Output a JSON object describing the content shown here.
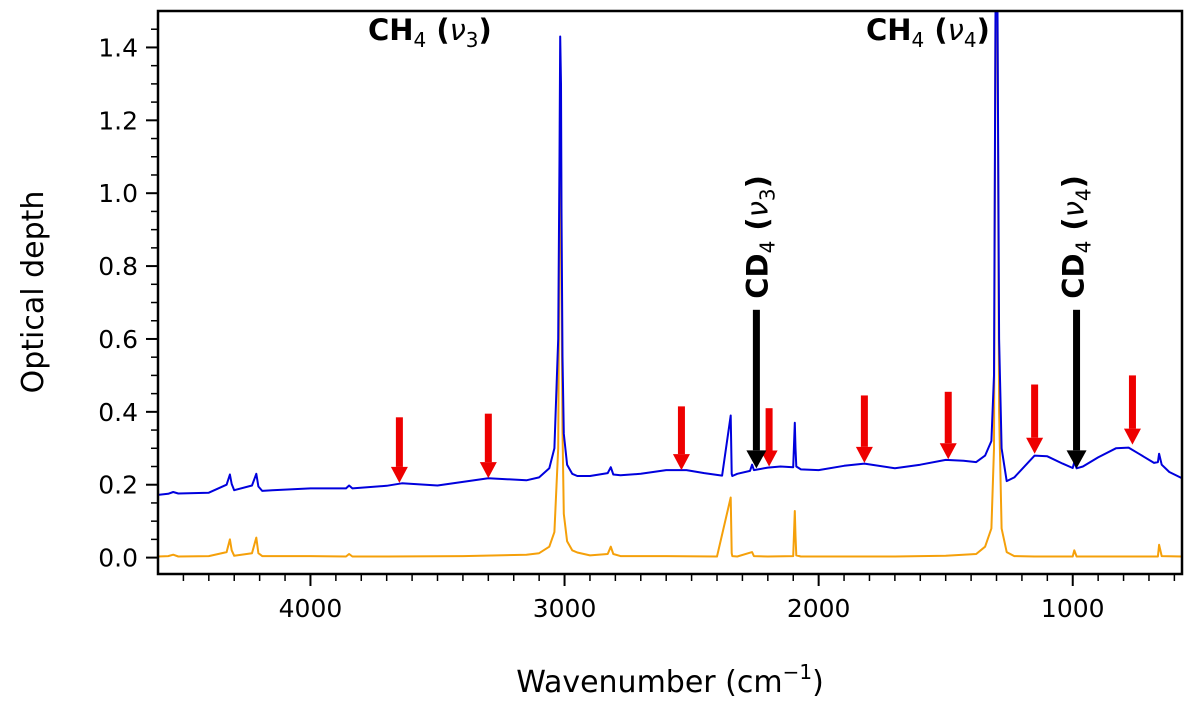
{
  "chart_data": {
    "type": "line",
    "title": "",
    "xlabel": "Wavenumber (cm",
    "xlabel_sup": "−1",
    "xlabel_close": ")",
    "ylabel": "Optical depth",
    "xlim": [
      4600,
      570
    ],
    "ylim": [
      -0.045,
      1.5
    ],
    "x_ticks": [
      4000,
      3000,
      2000,
      1000
    ],
    "x_tick_labels": [
      "4000",
      "3000",
      "2000",
      "1000"
    ],
    "y_ticks": [
      0.0,
      0.2,
      0.4,
      0.6,
      0.8,
      1.0,
      1.2,
      1.4
    ],
    "y_tick_labels": [
      "0.0",
      "0.2",
      "0.4",
      "0.6",
      "0.8",
      "1.0",
      "1.2",
      "1.4"
    ],
    "series": [
      {
        "name": "spectrum-blue",
        "color": "#0000dd",
        "x": [
          4600,
          4560,
          4540,
          4520,
          4400,
          4330,
          4317,
          4310,
          4300,
          4230,
          4213,
          4205,
          4190,
          4150,
          4000,
          3860,
          3848,
          3835,
          3700,
          3640,
          3500,
          3300,
          3150,
          3100,
          3060,
          3040,
          3025,
          3020,
          3017,
          3014,
          3012,
          3008,
          3003,
          2990,
          2970,
          2950,
          2900,
          2830,
          2818,
          2808,
          2780,
          2700,
          2600,
          2520,
          2450,
          2380,
          2346,
          2344,
          2342,
          2340,
          2320,
          2270,
          2262,
          2255,
          2200,
          2150,
          2100,
          2094,
          2091,
          2088,
          2070,
          2000,
          1900,
          1820,
          1700,
          1600,
          1500,
          1430,
          1380,
          1345,
          1320,
          1310,
          1304,
          1300,
          1296,
          1290,
          1280,
          1260,
          1230,
          1150,
          1100,
          1040,
          1000,
          994,
          985,
          960,
          900,
          830,
          780,
          740,
          680,
          665,
          660,
          650,
          620,
          570
        ],
        "values": [
          0.172,
          0.175,
          0.18,
          0.176,
          0.178,
          0.2,
          0.228,
          0.202,
          0.185,
          0.198,
          0.23,
          0.195,
          0.183,
          0.185,
          0.19,
          0.19,
          0.198,
          0.19,
          0.197,
          0.204,
          0.198,
          0.218,
          0.212,
          0.22,
          0.245,
          0.3,
          0.6,
          1.1,
          1.43,
          1.3,
          0.95,
          0.55,
          0.34,
          0.255,
          0.23,
          0.224,
          0.224,
          0.232,
          0.248,
          0.228,
          0.226,
          0.23,
          0.24,
          0.24,
          0.232,
          0.225,
          0.39,
          0.31,
          0.23,
          0.224,
          0.23,
          0.238,
          0.255,
          0.24,
          0.247,
          0.25,
          0.248,
          0.37,
          0.3,
          0.25,
          0.242,
          0.24,
          0.252,
          0.258,
          0.245,
          0.255,
          0.268,
          0.266,
          0.262,
          0.28,
          0.32,
          0.5,
          1.5,
          1.5,
          1.5,
          0.6,
          0.3,
          0.21,
          0.22,
          0.28,
          0.278,
          0.258,
          0.246,
          0.262,
          0.245,
          0.25,
          0.275,
          0.3,
          0.302,
          0.285,
          0.26,
          0.262,
          0.285,
          0.255,
          0.235,
          0.218
        ]
      },
      {
        "name": "spectrum-orange",
        "color": "#f5a00a",
        "x": [
          4600,
          4560,
          4540,
          4520,
          4400,
          4330,
          4317,
          4310,
          4300,
          4230,
          4213,
          4205,
          4190,
          4000,
          3860,
          3848,
          3835,
          3700,
          3400,
          3150,
          3100,
          3060,
          3040,
          3025,
          3020,
          3017,
          3014,
          3012,
          3008,
          3003,
          2990,
          2970,
          2950,
          2900,
          2830,
          2818,
          2808,
          2780,
          2600,
          2400,
          2346,
          2344,
          2342,
          2340,
          2320,
          2262,
          2255,
          2200,
          2100,
          2094,
          2091,
          2088,
          2070,
          2000,
          1700,
          1500,
          1380,
          1345,
          1320,
          1310,
          1304,
          1300,
          1296,
          1290,
          1280,
          1260,
          1230,
          1150,
          1000,
          994,
          985,
          800,
          665,
          660,
          650,
          570
        ],
        "values": [
          0.003,
          0.004,
          0.008,
          0.003,
          0.004,
          0.015,
          0.05,
          0.02,
          0.005,
          0.012,
          0.055,
          0.012,
          0.004,
          0.004,
          0.003,
          0.01,
          0.003,
          0.003,
          0.004,
          0.008,
          0.012,
          0.03,
          0.07,
          0.3,
          0.9,
          1.22,
          1.1,
          0.75,
          0.35,
          0.12,
          0.045,
          0.02,
          0.014,
          0.006,
          0.01,
          0.03,
          0.01,
          0.004,
          0.004,
          0.003,
          0.165,
          0.09,
          0.012,
          0.004,
          0.003,
          0.015,
          0.004,
          0.003,
          0.004,
          0.128,
          0.06,
          0.006,
          0.003,
          0.003,
          0.003,
          0.005,
          0.01,
          0.03,
          0.08,
          0.3,
          1.5,
          1.5,
          1.5,
          0.4,
          0.08,
          0.015,
          0.004,
          0.003,
          0.003,
          0.02,
          0.003,
          0.003,
          0.003,
          0.035,
          0.004,
          0.003
        ]
      }
    ],
    "annotations": [
      {
        "id": "ch4-v3",
        "base": "CH",
        "sub": "4",
        "greek": "ν",
        "greek_sub": "3",
        "x": 3530,
        "y": 1.42,
        "orientation": "horizontal"
      },
      {
        "id": "ch4-v4",
        "base": "CH",
        "sub": "4",
        "greek": "ν",
        "greek_sub": "4",
        "x": 1570,
        "y": 1.42,
        "orientation": "horizontal"
      },
      {
        "id": "cd4-v3",
        "base": "CD",
        "sub": "4",
        "greek": "ν",
        "greek_sub": "3",
        "x": 2245,
        "y": 0.88,
        "orientation": "vertical"
      },
      {
        "id": "cd4-v4",
        "base": "CD",
        "sub": "4",
        "greek": "ν",
        "greek_sub": "4",
        "x": 1000,
        "y": 0.88,
        "orientation": "vertical"
      }
    ],
    "black_arrows": [
      {
        "x": 2245,
        "y_from": 0.68,
        "y_to": 0.245
      },
      {
        "x": 985,
        "y_from": 0.68,
        "y_to": 0.245
      }
    ],
    "red_arrows": [
      {
        "x": 3650,
        "y_from": 0.385,
        "y_to": 0.205
      },
      {
        "x": 3300,
        "y_from": 0.395,
        "y_to": 0.218
      },
      {
        "x": 2540,
        "y_from": 0.415,
        "y_to": 0.24
      },
      {
        "x": 2195,
        "y_from": 0.41,
        "y_to": 0.25
      },
      {
        "x": 1820,
        "y_from": 0.445,
        "y_to": 0.26
      },
      {
        "x": 1490,
        "y_from": 0.455,
        "y_to": 0.27
      },
      {
        "x": 1150,
        "y_from": 0.475,
        "y_to": 0.285
      },
      {
        "x": 765,
        "y_from": 0.5,
        "y_to": 0.31
      }
    ]
  }
}
